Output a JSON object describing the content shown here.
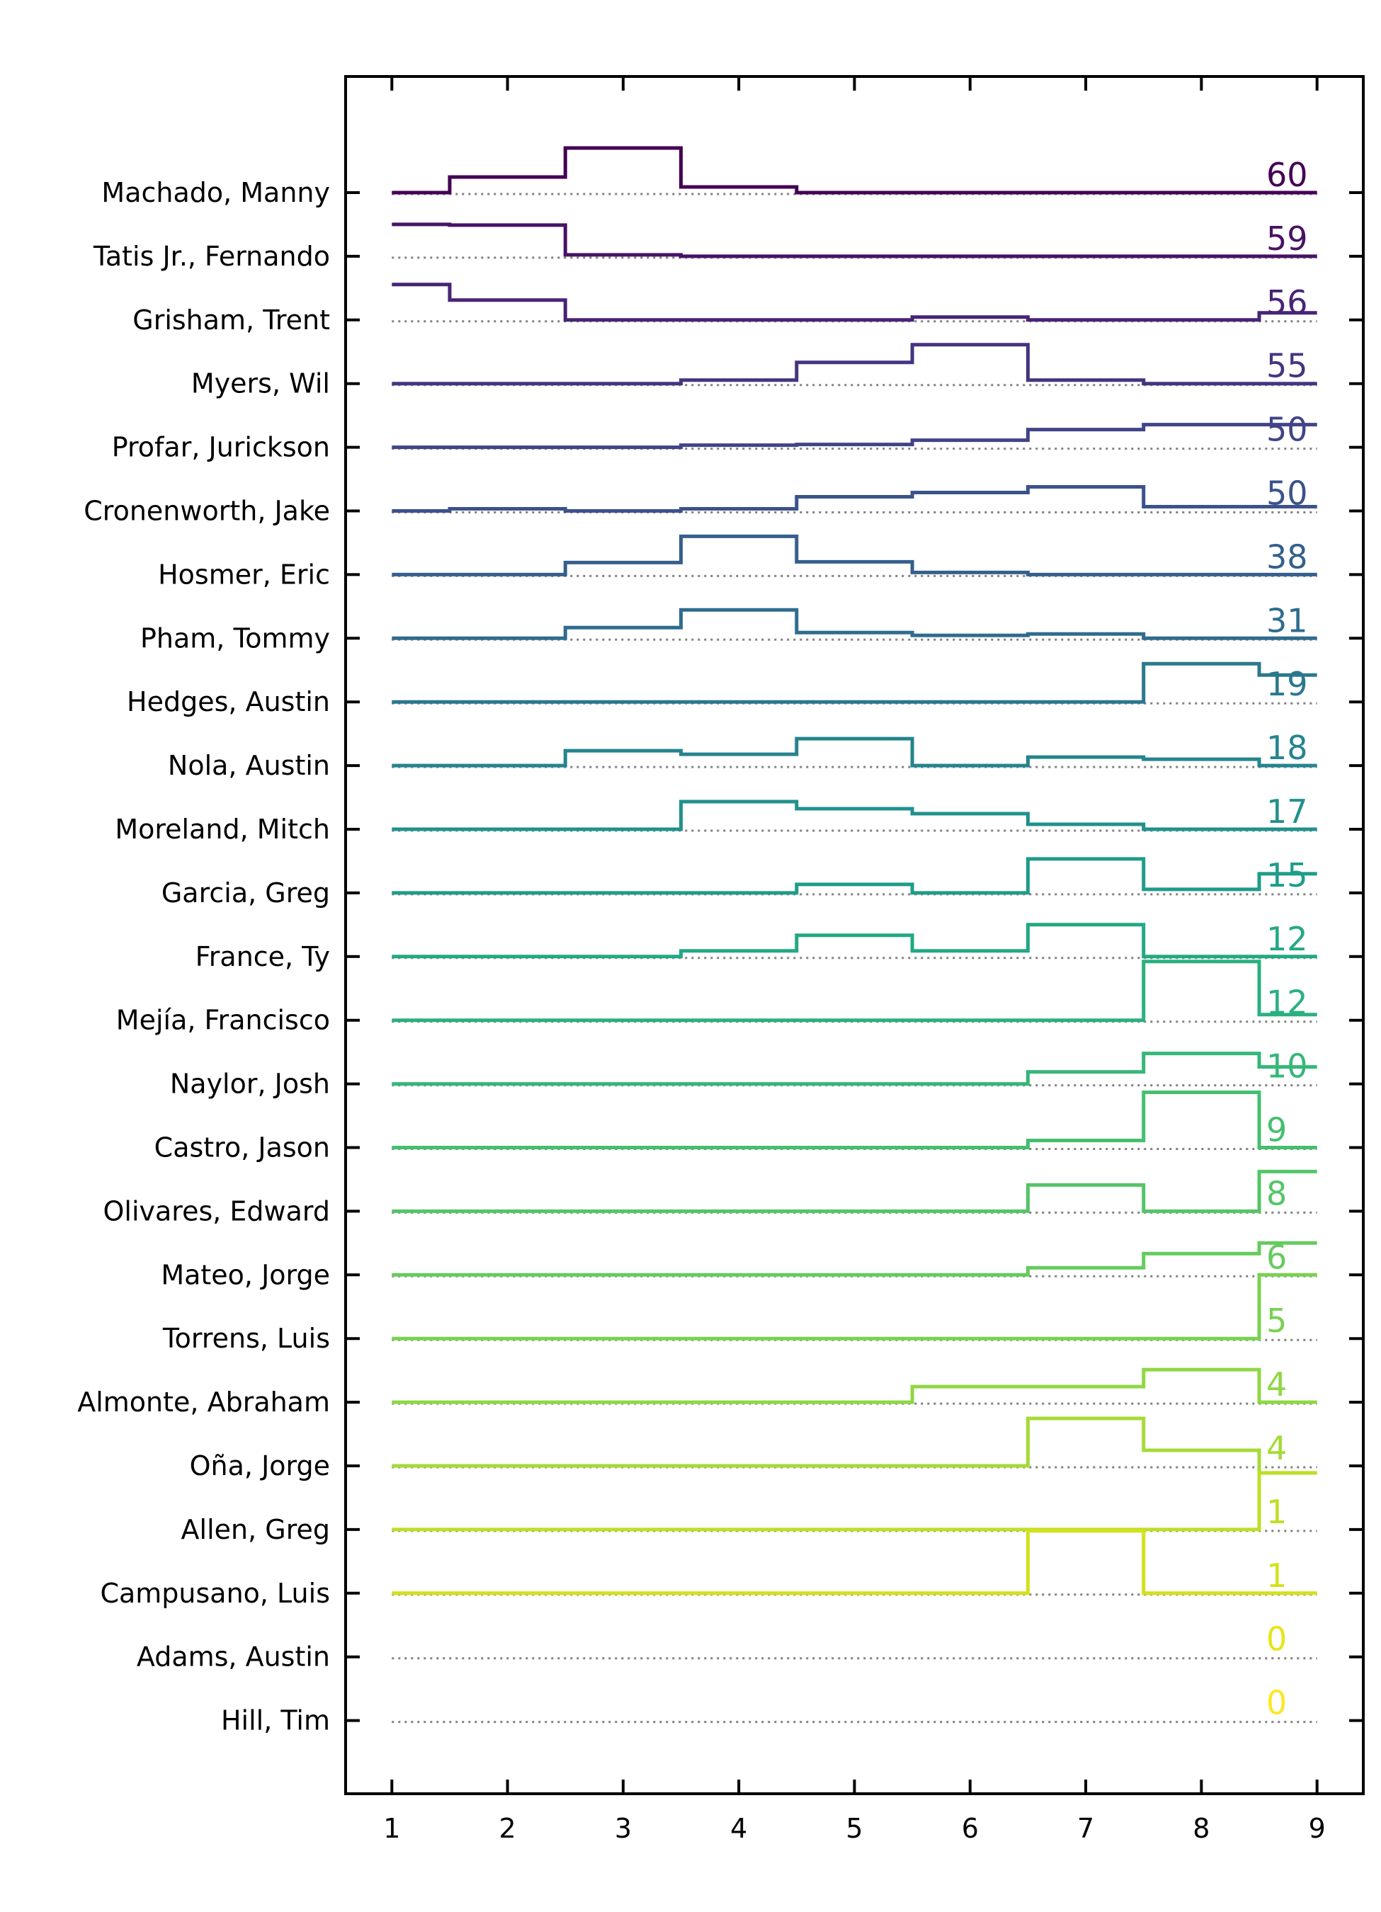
{
  "chart_data": {
    "type": "line",
    "step": "mid",
    "x": [
      1,
      2,
      3,
      4,
      5,
      6,
      7,
      8,
      9
    ],
    "xlim": [
      0.6,
      9.4
    ],
    "xticks": [
      "1",
      "2",
      "3",
      "4",
      "5",
      "6",
      "7",
      "8",
      "9"
    ],
    "grid": false,
    "legend": "none",
    "series": [
      {
        "name": "Machado, Manny",
        "total": "60",
        "color": "#440154",
        "values": [
          0,
          0.22,
          0.63,
          0.08,
          0,
          0,
          0,
          0,
          0
        ]
      },
      {
        "name": "Tatis Jr., Fernando",
        "total": "59",
        "color": "#471365",
        "values": [
          0.45,
          0.44,
          0.02,
          0,
          0,
          0,
          0,
          0,
          0
        ]
      },
      {
        "name": "Grisham, Trent",
        "total": "56",
        "color": "#482475",
        "values": [
          0.5,
          0.28,
          0,
          0,
          0,
          0.04,
          0,
          0,
          0.1
        ]
      },
      {
        "name": "Myers, Wil",
        "total": "55",
        "color": "#463480",
        "values": [
          0,
          0,
          0,
          0.05,
          0.3,
          0.55,
          0.05,
          0,
          0
        ]
      },
      {
        "name": "Profar, Jurickson",
        "total": "50",
        "color": "#414487",
        "values": [
          0,
          0,
          0,
          0.03,
          0.04,
          0.1,
          0.25,
          0.32,
          0.32
        ]
      },
      {
        "name": "Cronenworth, Jake",
        "total": "50",
        "color": "#3b528b",
        "values": [
          0,
          0.03,
          0,
          0.03,
          0.2,
          0.26,
          0.34,
          0.06,
          0.06
        ]
      },
      {
        "name": "Hosmer, Eric",
        "total": "38",
        "color": "#355f8d",
        "values": [
          0,
          0,
          0.17,
          0.54,
          0.18,
          0.03,
          0,
          0,
          0
        ]
      },
      {
        "name": "Pham, Tommy",
        "total": "31",
        "color": "#2f6c8e",
        "values": [
          0,
          0,
          0.15,
          0.4,
          0.08,
          0.04,
          0.06,
          0,
          0
        ]
      },
      {
        "name": "Hedges, Austin",
        "total": "19",
        "color": "#2a788e",
        "values": [
          0,
          0,
          0,
          0,
          0,
          0,
          0,
          0.54,
          0.38
        ]
      },
      {
        "name": "Nola, Austin",
        "total": "18",
        "color": "#25848e",
        "values": [
          0,
          0,
          0.21,
          0.16,
          0.38,
          0,
          0.12,
          0.09,
          0
        ]
      },
      {
        "name": "Moreland, Mitch",
        "total": "17",
        "color": "#21918c",
        "values": [
          0,
          0,
          0,
          0.39,
          0.29,
          0.22,
          0.07,
          0,
          0
        ]
      },
      {
        "name": "Garcia, Greg",
        "total": "15",
        "color": "#1e9c89",
        "values": [
          0,
          0,
          0,
          0,
          0.12,
          0,
          0.48,
          0.05,
          0.27
        ]
      },
      {
        "name": "France, Ty",
        "total": "12",
        "color": "#22a884",
        "values": [
          0,
          0,
          0,
          0.08,
          0.3,
          0.08,
          0.45,
          0,
          0
        ]
      },
      {
        "name": "Mejía, Francisco",
        "total": "12",
        "color": "#2ab07f",
        "values": [
          0,
          0,
          0,
          0,
          0,
          0,
          0,
          0.83,
          0.08
        ]
      },
      {
        "name": "Naylor, Josh",
        "total": "10",
        "color": "#35b779",
        "values": [
          0,
          0,
          0,
          0,
          0,
          0,
          0.17,
          0.43,
          0.24
        ]
      },
      {
        "name": "Castro, Jason",
        "total": "9",
        "color": "#44bf70",
        "values": [
          0,
          0,
          0,
          0,
          0,
          0,
          0.1,
          0.78,
          0
        ]
      },
      {
        "name": "Olivares, Edward",
        "total": "8",
        "color": "#54c568",
        "values": [
          0,
          0,
          0,
          0,
          0,
          0,
          0.37,
          0,
          0.56
        ]
      },
      {
        "name": "Mateo, Jorge",
        "total": "6",
        "color": "#65cb5e",
        "values": [
          0,
          0,
          0,
          0,
          0,
          0,
          0.1,
          0.3,
          0.45
        ]
      },
      {
        "name": "Torrens, Luis",
        "total": "5",
        "color": "#7ad151",
        "values": [
          0,
          0,
          0,
          0,
          0,
          0,
          0,
          0,
          0.9
        ]
      },
      {
        "name": "Almonte, Abraham",
        "total": "4",
        "color": "#8fd744",
        "values": [
          0,
          0,
          0,
          0,
          0,
          0.22,
          0.22,
          0.46,
          0
        ]
      },
      {
        "name": "Oña, Jorge",
        "total": "4",
        "color": "#a5db36",
        "values": [
          0,
          0,
          0,
          0,
          0,
          0,
          0.67,
          0.22,
          -0.1
        ]
      },
      {
        "name": "Allen, Greg",
        "total": "1",
        "color": "#bddf26",
        "values": [
          0,
          0,
          0,
          0,
          0,
          0,
          0,
          0,
          0.8
        ]
      },
      {
        "name": "Campusano, Luis",
        "total": "1",
        "color": "#d2e21b",
        "values": [
          0,
          0,
          0,
          0,
          0,
          0,
          0.88,
          0,
          0
        ]
      },
      {
        "name": "Adams, Austin",
        "total": "0",
        "color": "#e8e419",
        "values": [
          0,
          0,
          0,
          0,
          0,
          0,
          0,
          0,
          0
        ]
      },
      {
        "name": "Hill, Tim",
        "total": "0",
        "color": "#fde725",
        "values": [
          0,
          0,
          0,
          0,
          0,
          0,
          0,
          0,
          0
        ]
      }
    ]
  }
}
